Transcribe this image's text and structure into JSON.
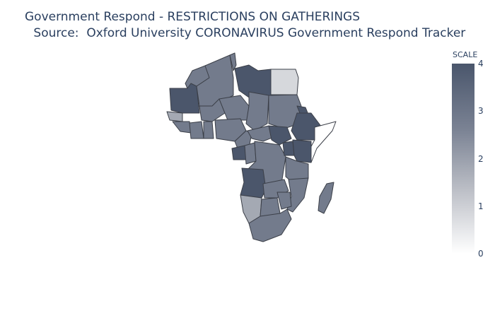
{
  "title": {
    "line1": "Government Respond - RESTRICTIONS ON GATHERINGS",
    "line2": " Source:  Oxford University CORONAVIRUS Government Respond Tracker"
  },
  "colorbar": {
    "title": "SCALE",
    "ticks": [
      "4",
      "3",
      "2",
      "1",
      "0"
    ],
    "range": [
      0,
      4
    ],
    "colors": {
      "low": "#ffffff",
      "mid": "#7b8394",
      "high": "#4a566c"
    }
  },
  "map": {
    "region": "Africa",
    "colors": {
      "level4": "#4b566b",
      "level3": "#737b8c",
      "level2": "#a4a9b3",
      "level1": "#d6d8dc",
      "border": "#3b3f48"
    }
  }
}
